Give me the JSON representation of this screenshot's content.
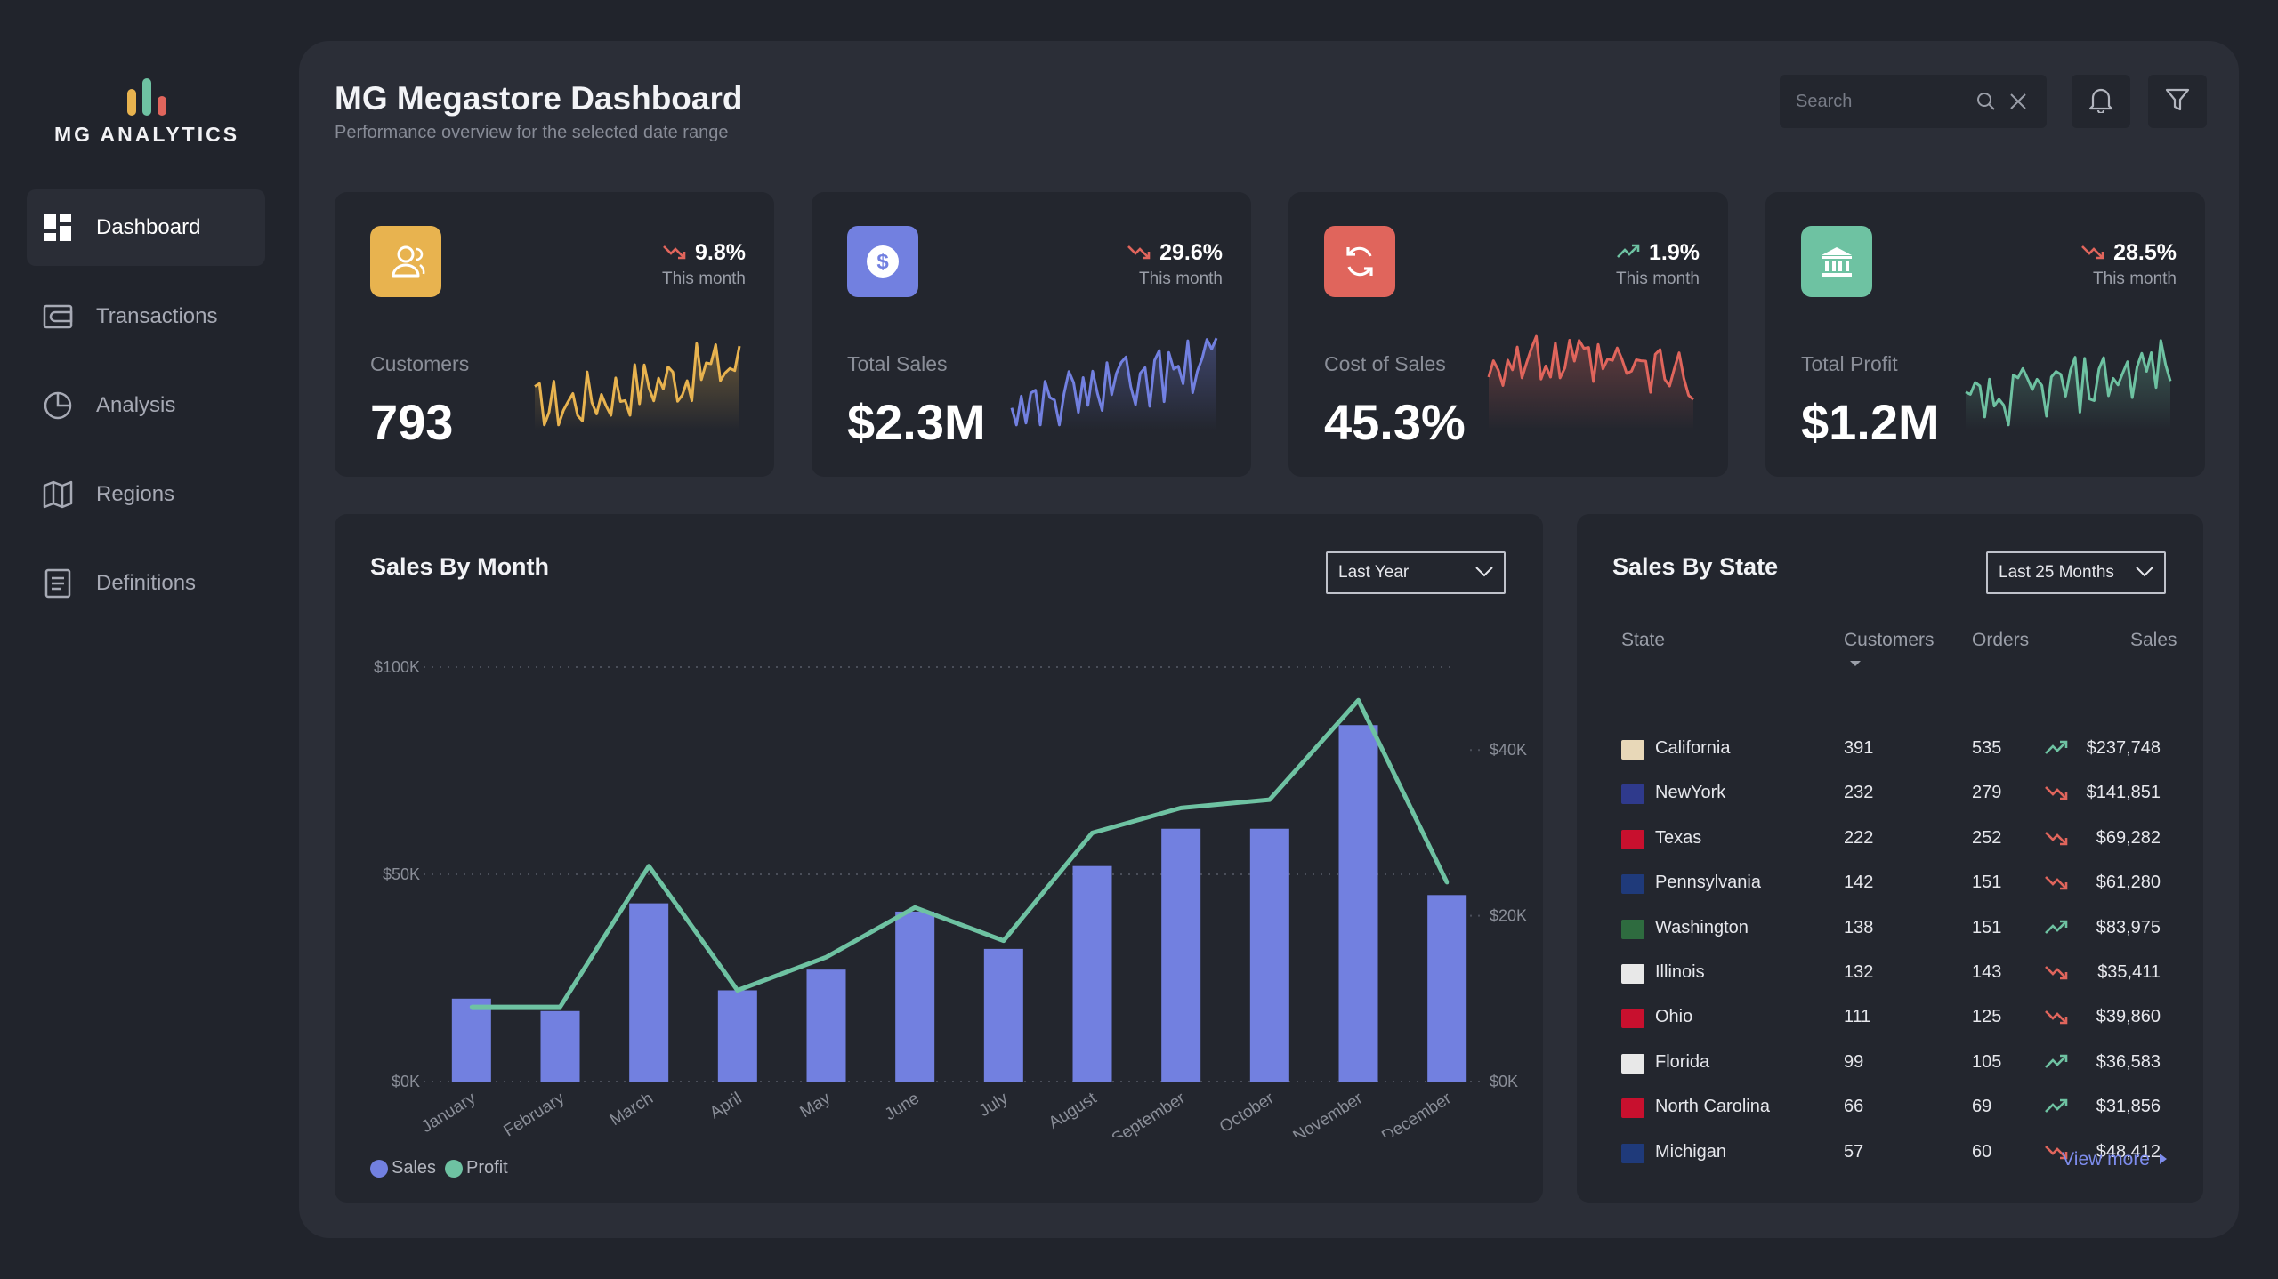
{
  "brand": {
    "name": "MG ANALYTICS",
    "bar_colors": [
      "#e8b34f",
      "#6ec2a2",
      "#e0655c"
    ]
  },
  "sidebar": {
    "items": [
      {
        "label": "Dashboard",
        "icon": "dashboard-icon",
        "active": true
      },
      {
        "label": "Transactions",
        "icon": "wallet-icon",
        "active": false
      },
      {
        "label": "Analysis",
        "icon": "pie-chart-icon",
        "active": false
      },
      {
        "label": "Regions",
        "icon": "map-icon",
        "active": false
      },
      {
        "label": "Definitions",
        "icon": "document-icon",
        "active": false
      }
    ]
  },
  "header": {
    "title": "MG Megastore Dashboard",
    "subtitle": "Performance overview for the selected date range",
    "search_placeholder": "Search"
  },
  "kpis": [
    {
      "label": "Customers",
      "value": "793",
      "change": "9.8%",
      "direction": "down",
      "period": "This month",
      "color": "#e8b34f",
      "icon": "users-icon"
    },
    {
      "label": "Total Sales",
      "value": "$2.3M",
      "change": "29.6%",
      "direction": "down",
      "period": "This month",
      "color": "#7280e0",
      "icon": "dollar-icon"
    },
    {
      "label": "Cost of Sales",
      "value": "45.3%",
      "change": "1.9%",
      "direction": "up",
      "period": "This month",
      "color": "#e0655c",
      "icon": "refresh-icon"
    },
    {
      "label": "Total Profit",
      "value": "$1.2M",
      "change": "28.5%",
      "direction": "down",
      "period": "This month",
      "color": "#6ec2a2",
      "icon": "bank-icon"
    }
  ],
  "colors": {
    "up": "#6ec2a2",
    "down": "#e0655c",
    "sales": "#7280e0",
    "profit": "#6ec2a2"
  },
  "sales_by_month": {
    "title": "Sales By Month",
    "filter": "Last Year",
    "legend_sales": "Sales",
    "legend_profit": "Profit"
  },
  "chart_data": {
    "type": "bar",
    "categories": [
      "January",
      "February",
      "March",
      "April",
      "May",
      "June",
      "July",
      "August",
      "September",
      "October",
      "November",
      "December"
    ],
    "series": [
      {
        "name": "Sales",
        "type": "bar",
        "axis": "left",
        "values": [
          20000,
          17000,
          43000,
          22000,
          27000,
          41000,
          32000,
          52000,
          61000,
          61000,
          86000,
          45000
        ]
      },
      {
        "name": "Profit",
        "type": "line",
        "axis": "right",
        "values": [
          9000,
          9000,
          26000,
          11000,
          15000,
          21000,
          17000,
          30000,
          33000,
          34000,
          46000,
          24000
        ]
      }
    ],
    "y_left": {
      "ticks": [
        "$0K",
        "$50K",
        "$100K"
      ],
      "range": [
        0,
        100000
      ]
    },
    "y_right": {
      "ticks": [
        "$0K",
        "$20K",
        "$40K"
      ],
      "range": [
        0,
        50000
      ]
    },
    "grid": true,
    "legend": "bottom-left"
  },
  "sales_by_state": {
    "title": "Sales By State",
    "filter": "Last 25 Months",
    "columns": [
      "State",
      "Customers",
      "Orders",
      "Sales"
    ],
    "rows": [
      {
        "state": "California",
        "customers": "391",
        "orders": "535",
        "trend": "up",
        "sales": "$237,748"
      },
      {
        "state": "NewYork",
        "customers": "232",
        "orders": "279",
        "trend": "down",
        "sales": "$141,851"
      },
      {
        "state": "Texas",
        "customers": "222",
        "orders": "252",
        "trend": "down",
        "sales": "$69,282"
      },
      {
        "state": "Pennsylvania",
        "customers": "142",
        "orders": "151",
        "trend": "down",
        "sales": "$61,280"
      },
      {
        "state": "Washington",
        "customers": "138",
        "orders": "151",
        "trend": "up",
        "sales": "$83,975"
      },
      {
        "state": "Illinois",
        "customers": "132",
        "orders": "143",
        "trend": "down",
        "sales": "$35,411"
      },
      {
        "state": "Ohio",
        "customers": "111",
        "orders": "125",
        "trend": "down",
        "sales": "$39,860"
      },
      {
        "state": "Florida",
        "customers": "99",
        "orders": "105",
        "trend": "up",
        "sales": "$36,583"
      },
      {
        "state": "North Carolina",
        "customers": "66",
        "orders": "69",
        "trend": "up",
        "sales": "$31,856"
      },
      {
        "state": "Michigan",
        "customers": "57",
        "orders": "60",
        "trend": "down",
        "sales": "$48,412"
      }
    ],
    "view_more": "View more"
  }
}
